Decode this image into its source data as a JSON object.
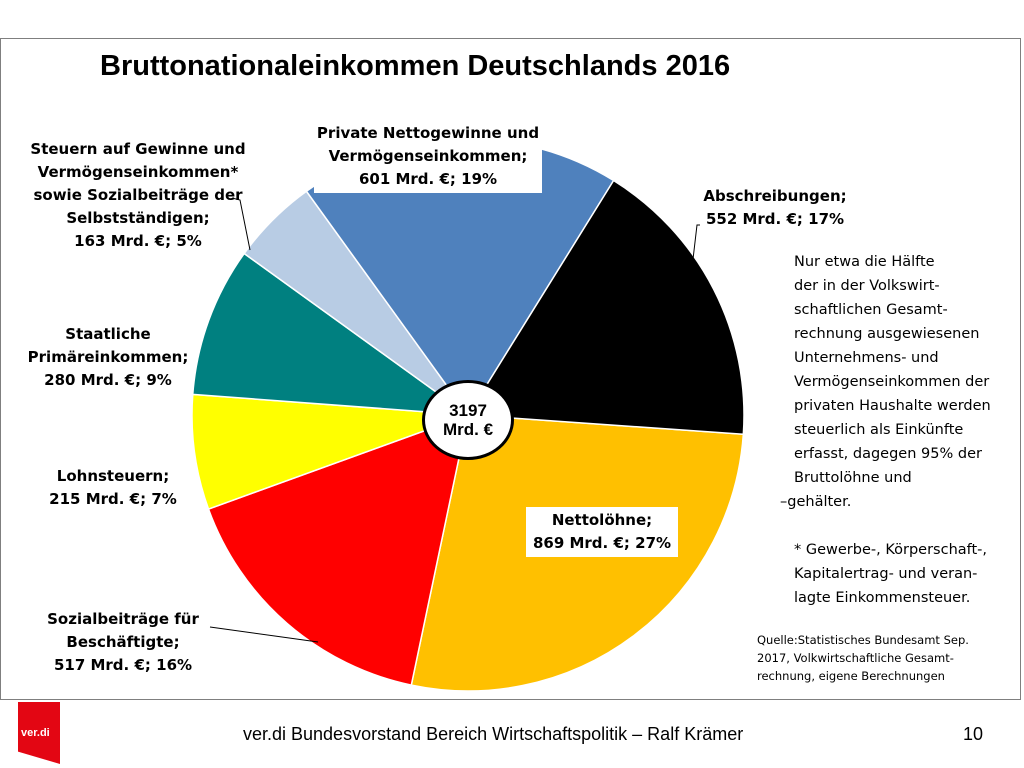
{
  "chart_data": {
    "type": "pie",
    "title": "Bruttonationaleinkommen Deutschlands 2016",
    "total": {
      "value": "3197",
      "unit": "Mrd. €"
    },
    "slices": [
      {
        "key": "nettoloehne",
        "lines": [
          "Nettolöhne;",
          "869 Mrd. €; 27%"
        ],
        "value": 869,
        "percent": 27,
        "color": "#ffc000"
      },
      {
        "key": "sozial",
        "lines": [
          "Sozialbeiträge für",
          "Beschäftigte;",
          "517 Mrd. €; 16%"
        ],
        "value": 517,
        "percent": 16,
        "color": "#ff0000"
      },
      {
        "key": "lohnsteuer",
        "lines": [
          "Lohnsteuern;",
          "215 Mrd. €; 7%"
        ],
        "value": 215,
        "percent": 7,
        "color": "#ffff00"
      },
      {
        "key": "staatlich",
        "lines": [
          "Staatliche",
          "Primäreinkommen;",
          "280 Mrd. €; 9%"
        ],
        "value": 280,
        "percent": 9,
        "color": "#008080"
      },
      {
        "key": "steuern",
        "lines": [
          "Steuern auf Gewinne und",
          "Vermögenseinkommen*",
          "sowie Sozialbeiträge der",
          "Selbstständigen;",
          "163 Mrd. €; 5%"
        ],
        "value": 163,
        "percent": 5,
        "color": "#b8cce4"
      },
      {
        "key": "private",
        "lines": [
          "Private Nettogewinne und",
          "Vermögenseinkommen;",
          "601 Mrd. €; 19%"
        ],
        "value": 601,
        "percent": 19,
        "color": "#4f81bd"
      },
      {
        "key": "abschreibungen",
        "lines": [
          "Abschreibungen;",
          "552 Mrd. €; 17%"
        ],
        "value": 552,
        "percent": 17,
        "color": "#000000"
      }
    ]
  },
  "note": {
    "lines": [
      "Nur etwa die Hälfte",
      "der in der Volkswirt-",
      "schaftlichen Gesamt-",
      "rechnung ausgewiesenen",
      "Unternehmens- und",
      "Vermögenseinkommen der",
      "privaten Haushalte werden",
      "steuerlich als Einkünfte",
      "erfasst, dagegen 95% der",
      "Bruttolöhne und",
      "–gehälter."
    ],
    "footnote": [
      "* Gewerbe-, Körperschaft-,",
      "Kapitalertrag- und veran-",
      "lagte Einkommensteuer."
    ]
  },
  "source": [
    "Quelle:Statistisches  Bundesamt Sep.",
    "2017, Volkwirtschaftliche Gesamt-",
    "rechnung, eigene Berechnungen"
  ],
  "footer": {
    "text": "ver.di Bundesvorstand Bereich Wirtschaftspolitik – Ralf Krämer",
    "page": "10",
    "logo_text": "ver.di"
  }
}
